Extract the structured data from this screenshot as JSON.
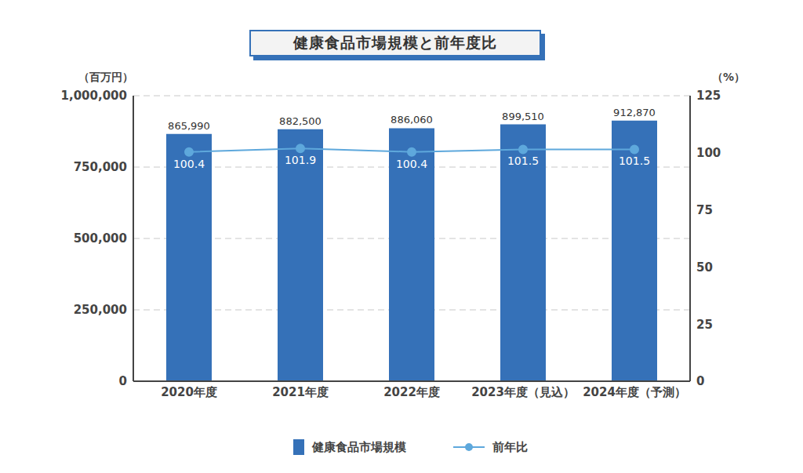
{
  "chart_data": {
    "type": "bar",
    "title": "健康食品市場規模と前年度比",
    "y_label": "（百万円）",
    "y2_label": "（%）",
    "categories": [
      "2020年度",
      "2021年度",
      "2022年度",
      "2023年度（見込）",
      "2024年度（予測）"
    ],
    "series": [
      {
        "name": "健康食品市場規模",
        "type": "bar",
        "color": "#3571b8",
        "values": [
          865990,
          882500,
          886060,
          899510,
          912870
        ],
        "value_labels": [
          "865,990",
          "882,500",
          "886,060",
          "899,510",
          "912,870"
        ],
        "data_labels": true
      },
      {
        "name": "前年比",
        "type": "line",
        "axis": "y2",
        "color": "#5ea8dc",
        "marker": "circle",
        "values": [
          100.4,
          101.9,
          100.4,
          101.5,
          101.5
        ],
        "data_labels": true
      }
    ],
    "ylim": [
      0,
      1000000
    ],
    "yticks": [
      0,
      {
        "value": 250000,
        "label": "250,000"
      },
      {
        "value": 500000,
        "label": "500,000"
      },
      {
        "value": 750000,
        "label": "750,000"
      },
      {
        "value": 1000000,
        "label": "1,000,000"
      }
    ],
    "y2lim": [
      0,
      125
    ],
    "y2ticks": [
      0,
      25,
      50,
      75,
      100,
      125
    ],
    "grid": true,
    "legend": "bottom"
  }
}
